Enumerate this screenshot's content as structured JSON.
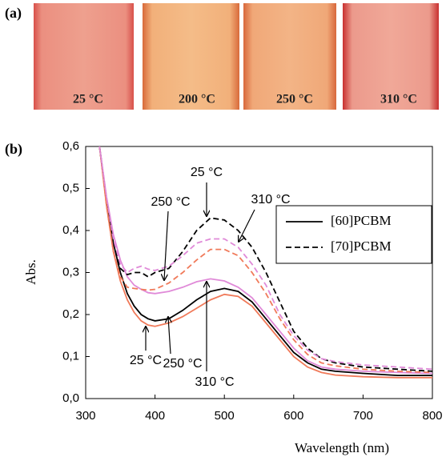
{
  "panel_labels": [
    "(a)",
    "(b)"
  ],
  "photos": [
    {
      "label": "25 °C"
    },
    {
      "label": "200 °C"
    },
    {
      "label": "250 °C"
    },
    {
      "label": "310 °C"
    }
  ],
  "chart_data": {
    "type": "line",
    "xlabel": "Wavelength (nm)",
    "ylabel": "Abs.",
    "xlim": [
      300,
      800
    ],
    "ylim": [
      0,
      0.6
    ],
    "xticks": [
      300,
      400,
      500,
      600,
      700,
      800
    ],
    "yticks": [
      {
        "value": 0,
        "label": "0,0"
      },
      {
        "value": 0.1,
        "label": "0,1"
      },
      {
        "value": 0.2,
        "label": "0,2"
      },
      {
        "value": 0.3,
        "label": "0,3"
      },
      {
        "value": 0.4,
        "label": "0,4"
      },
      {
        "value": 0.5,
        "label": "0,5"
      },
      {
        "value": 0.6,
        "label": "0,6"
      }
    ],
    "legend": [
      {
        "name": "[60]PCBM",
        "dashed": false,
        "color": "#000000"
      },
      {
        "name": "[70]PCBM",
        "dashed": true,
        "color": "#000000"
      }
    ],
    "legend_position": "upper right",
    "x": [
      320,
      330,
      340,
      350,
      360,
      370,
      380,
      390,
      400,
      420,
      440,
      460,
      480,
      500,
      520,
      540,
      560,
      580,
      600,
      620,
      640,
      660,
      700,
      750,
      800
    ],
    "series": [
      {
        "color": "#000000",
        "dashed": false,
        "values": [
          0.6,
          0.47,
          0.37,
          0.3,
          0.25,
          0.22,
          0.2,
          0.19,
          0.185,
          0.19,
          0.21,
          0.235,
          0.255,
          0.262,
          0.255,
          0.23,
          0.19,
          0.15,
          0.11,
          0.085,
          0.07,
          0.065,
          0.06,
          0.055,
          0.055
        ]
      },
      {
        "color": "#f07a5a",
        "dashed": false,
        "values": [
          0.6,
          0.46,
          0.35,
          0.28,
          0.235,
          0.205,
          0.185,
          0.175,
          0.172,
          0.18,
          0.195,
          0.215,
          0.235,
          0.248,
          0.243,
          0.22,
          0.18,
          0.14,
          0.1,
          0.075,
          0.062,
          0.056,
          0.052,
          0.05,
          0.05
        ]
      },
      {
        "color": "#e08ad8",
        "dashed": false,
        "values": [
          0.6,
          0.48,
          0.39,
          0.33,
          0.29,
          0.27,
          0.26,
          0.252,
          0.25,
          0.255,
          0.265,
          0.278,
          0.285,
          0.28,
          0.265,
          0.24,
          0.2,
          0.16,
          0.12,
          0.09,
          0.075,
          0.07,
          0.065,
          0.062,
          0.06
        ]
      },
      {
        "color": "#000000",
        "dashed": true,
        "values": [
          0.6,
          0.47,
          0.37,
          0.31,
          0.295,
          0.3,
          0.3,
          0.29,
          0.3,
          0.31,
          0.35,
          0.4,
          0.43,
          0.425,
          0.4,
          0.36,
          0.3,
          0.23,
          0.16,
          0.12,
          0.095,
          0.085,
          0.075,
          0.07,
          0.065
        ]
      },
      {
        "color": "#f07a5a",
        "dashed": true,
        "values": [
          0.6,
          0.46,
          0.35,
          0.29,
          0.265,
          0.262,
          0.26,
          0.258,
          0.26,
          0.275,
          0.3,
          0.33,
          0.355,
          0.355,
          0.34,
          0.3,
          0.25,
          0.19,
          0.14,
          0.105,
          0.085,
          0.078,
          0.07,
          0.065,
          0.062
        ]
      },
      {
        "color": "#e08ad8",
        "dashed": true,
        "values": [
          0.6,
          0.48,
          0.38,
          0.32,
          0.3,
          0.31,
          0.315,
          0.308,
          0.305,
          0.315,
          0.34,
          0.37,
          0.38,
          0.38,
          0.36,
          0.32,
          0.27,
          0.2,
          0.15,
          0.115,
          0.095,
          0.088,
          0.08,
          0.075,
          0.07
        ]
      }
    ],
    "annotations": [
      {
        "text": "25 °C"
      },
      {
        "text": "250 °C"
      },
      {
        "text": "310 °C"
      },
      {
        "text": "25 °C"
      },
      {
        "text": "250 °C"
      },
      {
        "text": "310 °C"
      }
    ]
  }
}
